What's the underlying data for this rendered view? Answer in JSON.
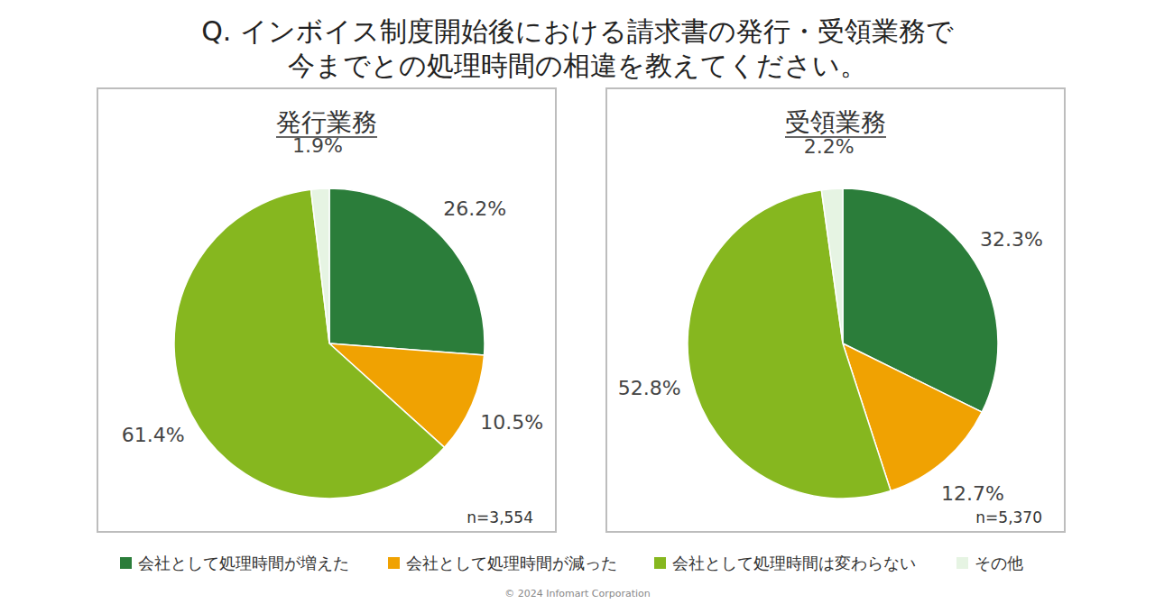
{
  "title": [
    "Q. インボイス制度開始後における請求書の発行・受領業務で",
    "今までとの処理時間の相違を教えてください。"
  ],
  "legend": "bottom",
  "footer": "© 2024 Infomart Corporation",
  "chart_data": [
    {
      "type": "pie",
      "title": "発行業務",
      "categories": [
        "会社として処理時間が増えた",
        "会社として処理時間が減った",
        "会社として処理時間は変わらない",
        "その他"
      ],
      "values": [
        26.2,
        10.5,
        61.4,
        1.9
      ],
      "value_labels": [
        "26.2%",
        "10.5%",
        "61.4%",
        "1.9%"
      ],
      "colors": [
        "#2b7d3a",
        "#f0a202",
        "#86b71f",
        "#e6f4e3"
      ],
      "data_labels": true,
      "annotation": "n=3,554"
    },
    {
      "type": "pie",
      "title": "受領業務",
      "categories": [
        "会社として処理時間が増えた",
        "会社として処理時間が減った",
        "会社として処理時間は変わらない",
        "その他"
      ],
      "values": [
        32.3,
        12.7,
        52.8,
        2.2
      ],
      "value_labels": [
        "32.3%",
        "12.7%",
        "52.8%",
        "2.2%"
      ],
      "colors": [
        "#2b7d3a",
        "#f0a202",
        "#86b71f",
        "#e6f4e3"
      ],
      "data_labels": true,
      "annotation": "n=5,370"
    }
  ]
}
